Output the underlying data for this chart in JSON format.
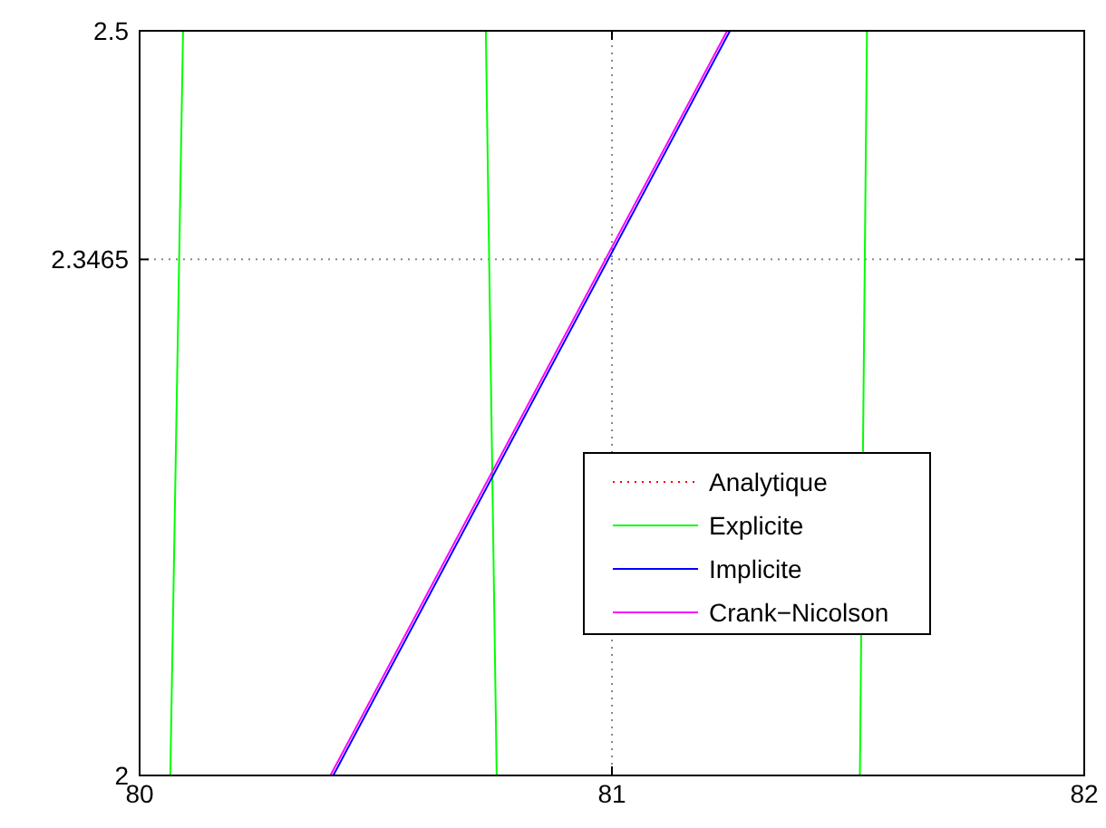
{
  "chart_data": {
    "type": "line",
    "xlim": [
      80,
      82
    ],
    "ylim": [
      2,
      2.5
    ],
    "xticks": [
      80,
      81,
      82
    ],
    "yticks": [
      2,
      2.3465,
      2.5
    ],
    "grid": true,
    "legend": "bottom right",
    "series": [
      {
        "name": "Analytique",
        "color": "#ff0000",
        "line_style": "dotted"
      },
      {
        "name": "Explicite",
        "color": "#00ff00",
        "x": [
          80.065,
          80.092,
          null,
          80.733,
          80.756,
          null,
          81.525,
          81.54
        ],
        "values": [
          2,
          2.5,
          null,
          2.5,
          2,
          null,
          2,
          2.5
        ]
      },
      {
        "name": "Implicite",
        "color": "#0000ff",
        "x": [
          80.41,
          81.25
        ],
        "values": [
          2,
          2.5
        ]
      },
      {
        "name": "Crank−Nicolson",
        "color": "#ff00ff",
        "x": [
          80.404,
          81.244
        ],
        "values": [
          2,
          2.5
        ]
      }
    ]
  }
}
